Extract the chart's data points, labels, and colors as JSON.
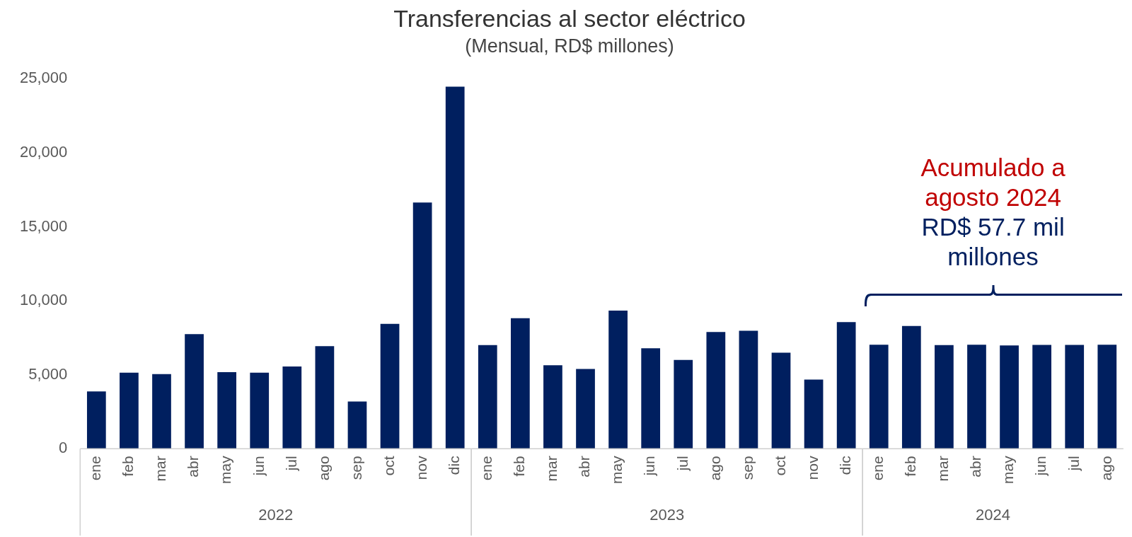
{
  "chart_data": {
    "type": "bar",
    "title": "Transferencias al sector eléctrico",
    "subtitle": "(Mensual, RD$ millones)",
    "categories": [
      "ene",
      "feb",
      "mar",
      "abr",
      "may",
      "jun",
      "jul",
      "ago",
      "sep",
      "oct",
      "nov",
      "dic",
      "ene",
      "feb",
      "mar",
      "abr",
      "may",
      "jun",
      "jul",
      "ago",
      "sep",
      "oct",
      "nov",
      "dic",
      "ene",
      "feb",
      "mar",
      "abr",
      "may",
      "jun",
      "jul",
      "ago"
    ],
    "values": [
      3870,
      5140,
      5050,
      7740,
      5180,
      5140,
      5560,
      6930,
      3190,
      8440,
      16640,
      24460,
      7000,
      8820,
      5640,
      5390,
      9340,
      6790,
      6000,
      7890,
      7970,
      6490,
      4670,
      8560,
      7030,
      8290,
      7000,
      7030,
      6980,
      7020,
      7020,
      7030
    ],
    "color": "#001f5f",
    "ylim": [
      0,
      25000
    ],
    "yticks": [
      0,
      {
        "value": 5000,
        "label": "5,000"
      },
      {
        "value": 10000,
        "label": "10,000"
      },
      {
        "value": 15000,
        "label": "15,000"
      },
      {
        "value": 20000,
        "label": "20,000"
      },
      {
        "value": 25000,
        "label": "25,000"
      }
    ],
    "grid": false,
    "legend": false,
    "annotations": [
      "Acumulado a agosto 2024",
      "RD$ 57.7 mil millones",
      "2022",
      "2023",
      "2024"
    ]
  }
}
